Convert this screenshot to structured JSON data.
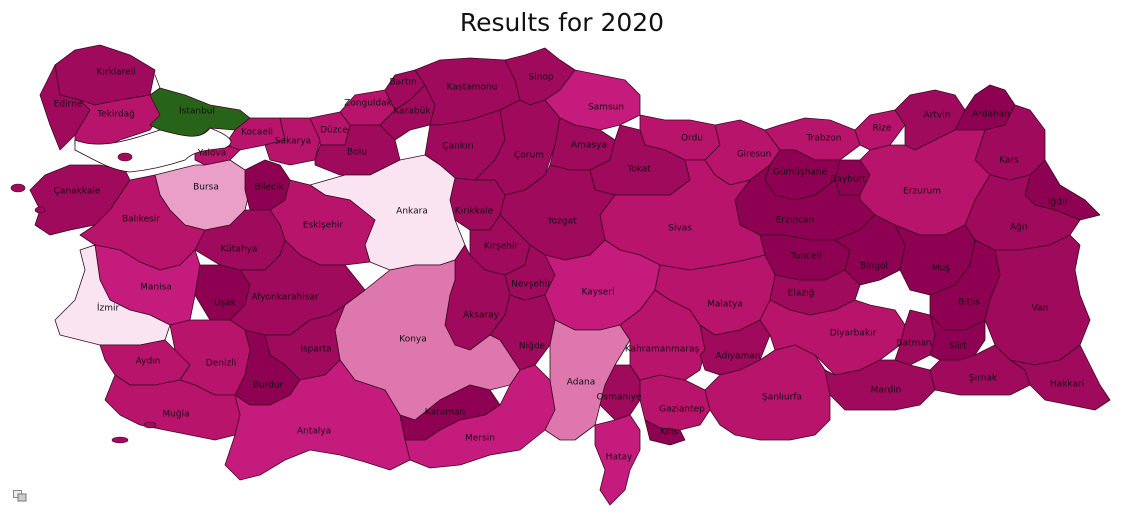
{
  "title": "Results for 2020",
  "colors": {
    "c1": "#8e0152",
    "c2": "#9f0a5c",
    "c3": "#b8146b",
    "c4": "#c51b7d",
    "c5": "#de77ae",
    "c6": "#ea9fc9",
    "c7": "#fbe4f1",
    "green": "#276419"
  },
  "provinces": [
    {
      "name": "Kırklareli",
      "color": "c2"
    },
    {
      "name": "Edirne",
      "color": "c2"
    },
    {
      "name": "Tekirdağ",
      "color": "c3"
    },
    {
      "name": "İstanbul",
      "color": "green"
    },
    {
      "name": "Kocaeli",
      "color": "c3"
    },
    {
      "name": "Yalova",
      "color": "c3"
    },
    {
      "name": "Sakarya",
      "color": "c3"
    },
    {
      "name": "Düzce",
      "color": "c3"
    },
    {
      "name": "Bolu",
      "color": "c2"
    },
    {
      "name": "Zonguldak",
      "color": "c3"
    },
    {
      "name": "Bartın",
      "color": "c2"
    },
    {
      "name": "Karabük",
      "color": "c2"
    },
    {
      "name": "Kastamonu",
      "color": "c2"
    },
    {
      "name": "Sinop",
      "color": "c2"
    },
    {
      "name": "Samsun",
      "color": "c4"
    },
    {
      "name": "Çankırı",
      "color": "c2"
    },
    {
      "name": "Çorum",
      "color": "c2"
    },
    {
      "name": "Amasya",
      "color": "c2"
    },
    {
      "name": "Ordu",
      "color": "c3"
    },
    {
      "name": "Tokat",
      "color": "c2"
    },
    {
      "name": "Giresun",
      "color": "c3"
    },
    {
      "name": "Trabzon",
      "color": "c3"
    },
    {
      "name": "Rize",
      "color": "c3"
    },
    {
      "name": "Artvin",
      "color": "c2"
    },
    {
      "name": "Ardahan",
      "color": "c1"
    },
    {
      "name": "Gümüşhane",
      "color": "c1"
    },
    {
      "name": "Bayburt",
      "color": "c1"
    },
    {
      "name": "Kars",
      "color": "c2"
    },
    {
      "name": "Erzurum",
      "color": "c3"
    },
    {
      "name": "Iğdır",
      "color": "c1"
    },
    {
      "name": "Ağrı",
      "color": "c2"
    },
    {
      "name": "Erzincan",
      "color": "c1"
    },
    {
      "name": "Tunceli",
      "color": "c1"
    },
    {
      "name": "Bingöl",
      "color": "c1"
    },
    {
      "name": "Muş",
      "color": "c1"
    },
    {
      "name": "Bitlis",
      "color": "c1"
    },
    {
      "name": "Van",
      "color": "c2"
    },
    {
      "name": "Sivas",
      "color": "c3"
    },
    {
      "name": "Yozgat",
      "color": "c2"
    },
    {
      "name": "Kırıkkale",
      "color": "c2"
    },
    {
      "name": "Ankara",
      "color": "c7"
    },
    {
      "name": "Kırşehir",
      "color": "c2"
    },
    {
      "name": "Nevşehir",
      "color": "c2"
    },
    {
      "name": "Kayseri",
      "color": "c4"
    },
    {
      "name": "Aksaray",
      "color": "c2"
    },
    {
      "name": "Niğde",
      "color": "c2"
    },
    {
      "name": "Konya",
      "color": "c5"
    },
    {
      "name": "Karaman",
      "color": "c1"
    },
    {
      "name": "Mersin",
      "color": "c4"
    },
    {
      "name": "Adana",
      "color": "c5"
    },
    {
      "name": "Osmaniye",
      "color": "c2"
    },
    {
      "name": "Hatay",
      "color": "c4"
    },
    {
      "name": "Gaziantep",
      "color": "c3"
    },
    {
      "name": "Kilis",
      "color": "c1"
    },
    {
      "name": "Kahramanmaraş",
      "color": "c3"
    },
    {
      "name": "Malatya",
      "color": "c3"
    },
    {
      "name": "Elazığ",
      "color": "c2"
    },
    {
      "name": "Adıyaman",
      "color": "c2"
    },
    {
      "name": "Şanlıurfa",
      "color": "c3"
    },
    {
      "name": "Diyarbakır",
      "color": "c3"
    },
    {
      "name": "Batman",
      "color": "c2"
    },
    {
      "name": "Siirt",
      "color": "c1"
    },
    {
      "name": "Mardin",
      "color": "c2"
    },
    {
      "name": "Şırnak",
      "color": "c2"
    },
    {
      "name": "Hakkari",
      "color": "c2"
    },
    {
      "name": "Bursa",
      "color": "c6"
    },
    {
      "name": "Bilecik",
      "color": "c1"
    },
    {
      "name": "Eskişehir",
      "color": "c3"
    },
    {
      "name": "Çanakkale",
      "color": "c2"
    },
    {
      "name": "Balıkesir",
      "color": "c3"
    },
    {
      "name": "Kütahya",
      "color": "c2"
    },
    {
      "name": "Manisa",
      "color": "c4"
    },
    {
      "name": "İzmir",
      "color": "c7"
    },
    {
      "name": "Uşak",
      "color": "c1"
    },
    {
      "name": "Afyonkarahisar",
      "color": "c2"
    },
    {
      "name": "Aydın",
      "color": "c3"
    },
    {
      "name": "Denizli",
      "color": "c3"
    },
    {
      "name": "Isparta",
      "color": "c2"
    },
    {
      "name": "Burdur",
      "color": "c1"
    },
    {
      "name": "Muğla",
      "color": "c3"
    },
    {
      "name": "Antalya",
      "color": "c4"
    }
  ],
  "toolbar_icon": "pan-zoom-icon"
}
